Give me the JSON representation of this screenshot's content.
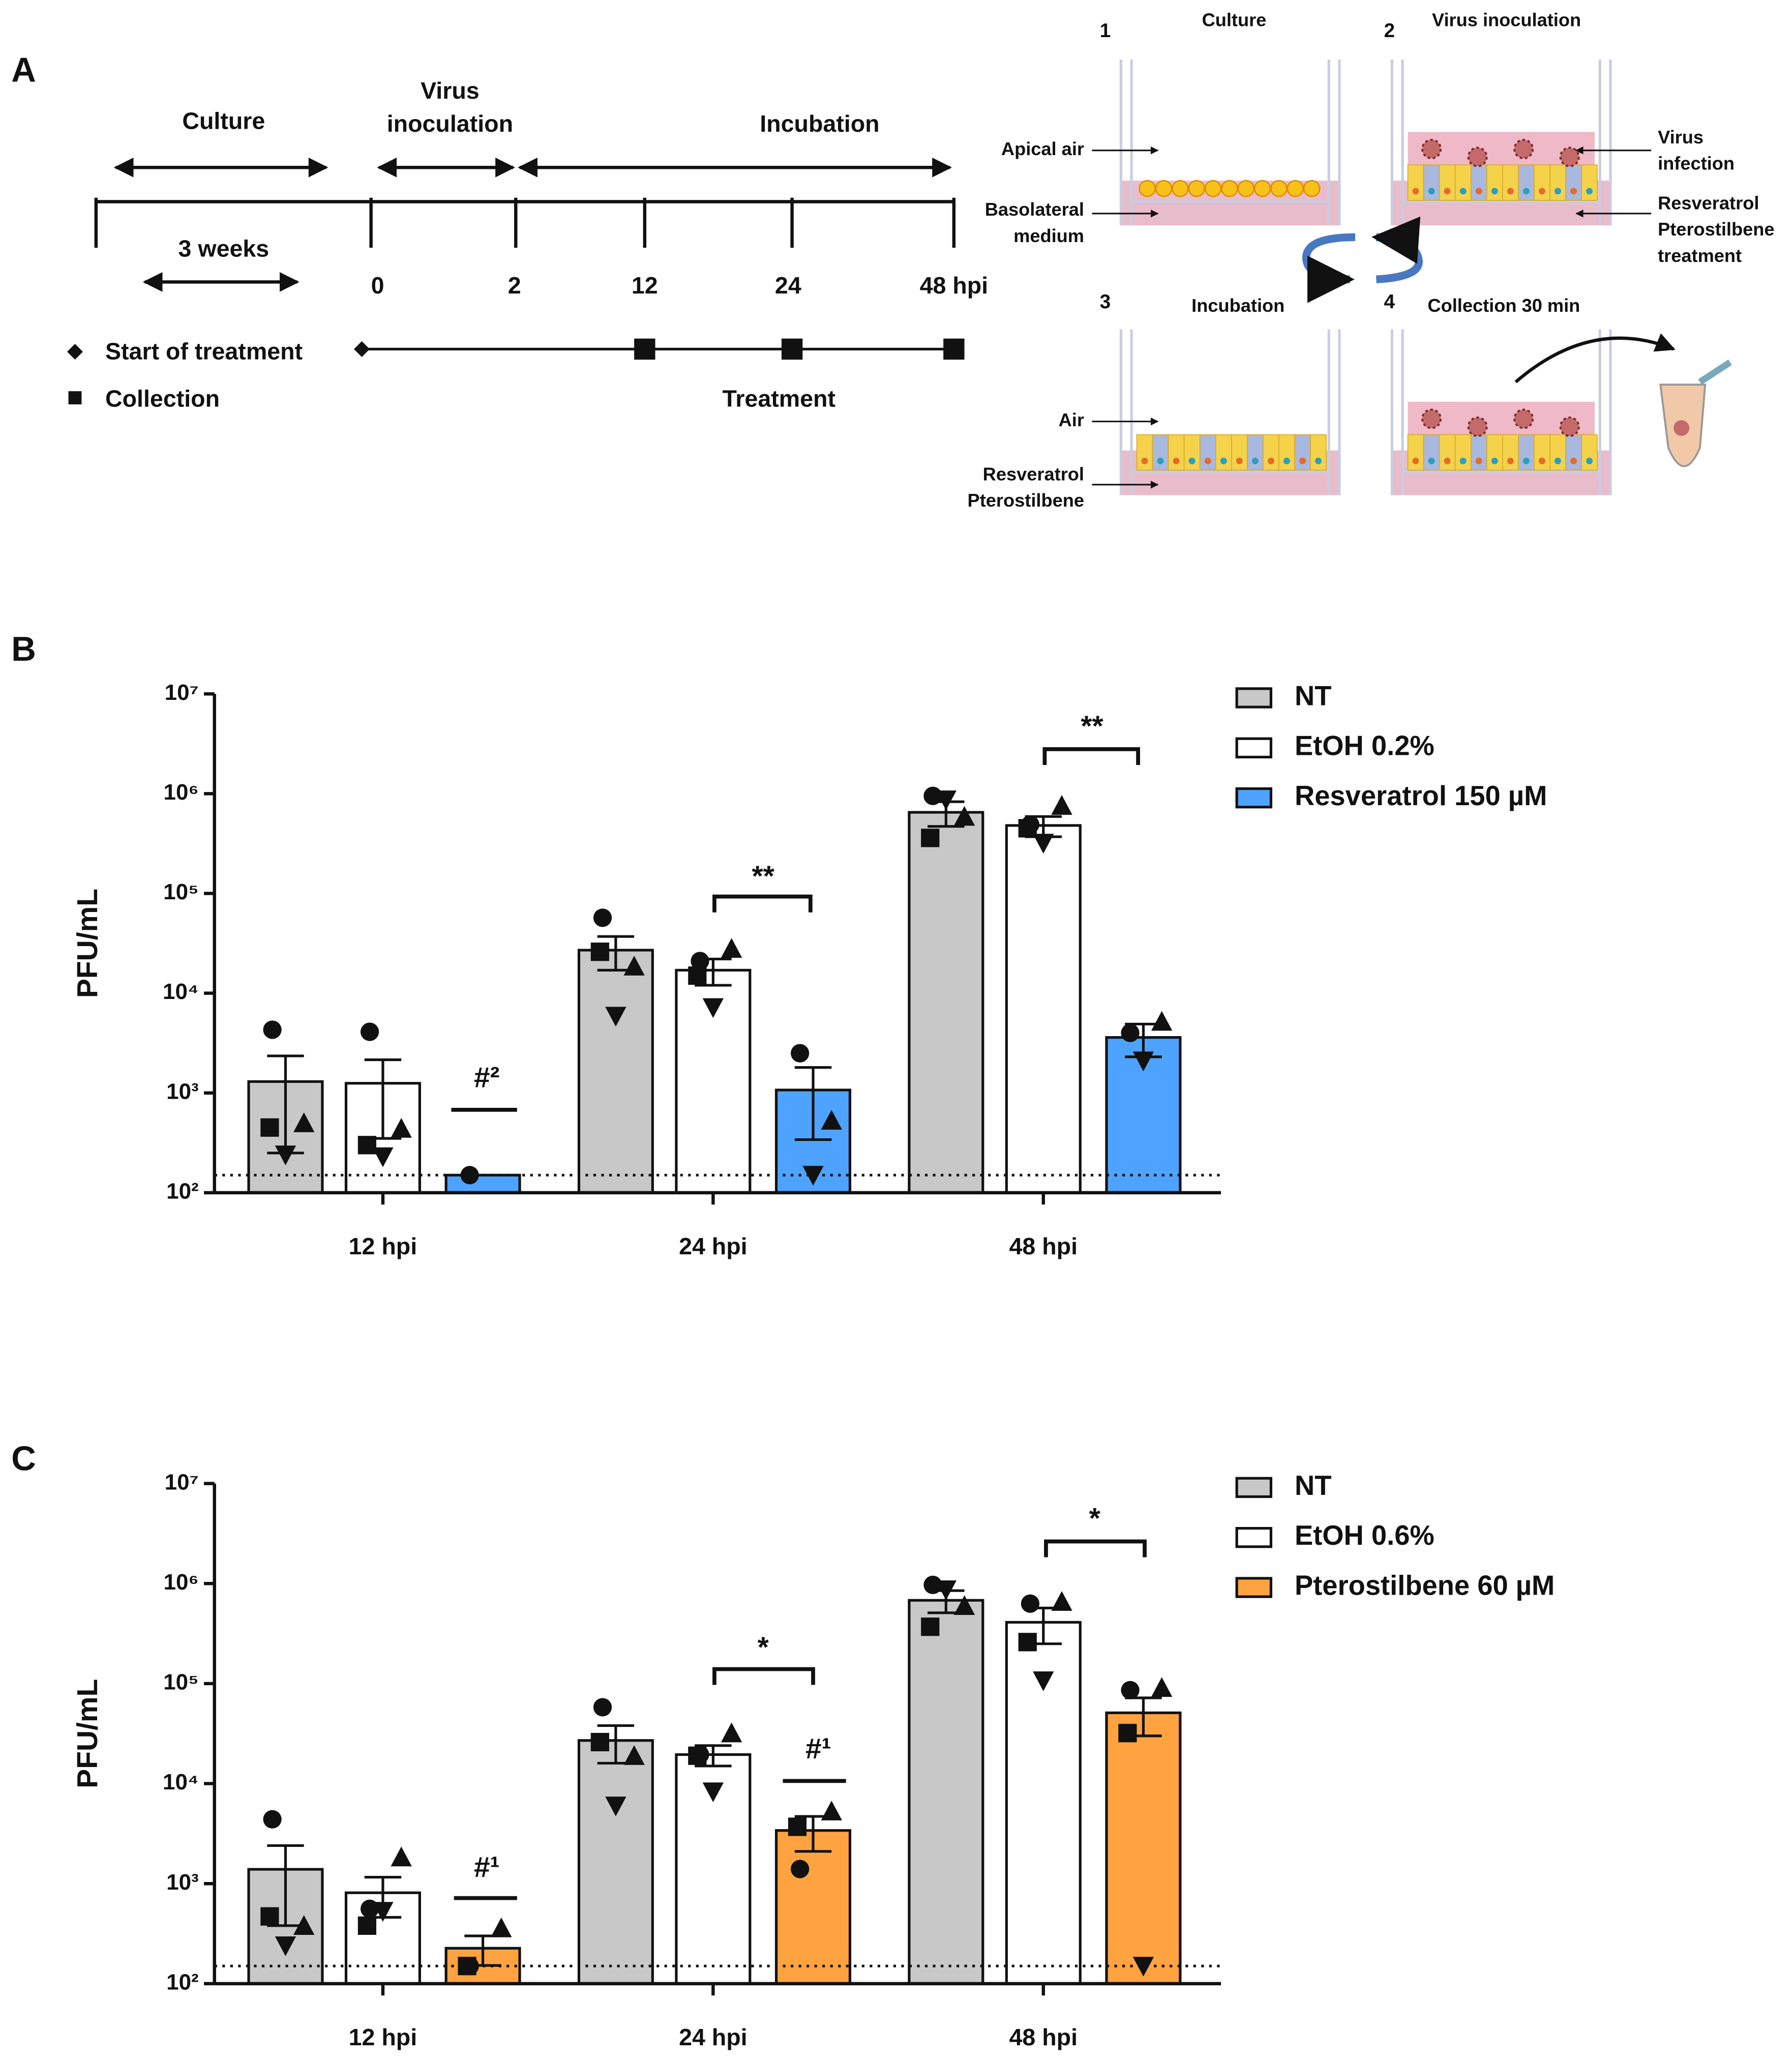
{
  "panel_a": {
    "label": "A",
    "timeline": {
      "phases": [
        [
          "Culture"
        ],
        [
          "Virus",
          "inoculation"
        ],
        [
          "Incubation"
        ]
      ],
      "duration": "3 weeks",
      "ticks": [
        "0",
        "2",
        "12",
        "24",
        "48 hpi"
      ],
      "legend": [
        "Start of treatment",
        "Collection"
      ],
      "treatment": "Treatment"
    },
    "schematic": {
      "steps": [
        {
          "number": "1",
          "title": "Culture"
        },
        {
          "number": "2",
          "title": "Virus inoculation"
        },
        {
          "number": "3",
          "title": "Incubation"
        },
        {
          "number": "4",
          "title": "Collection 30 min"
        }
      ],
      "labels": [
        [
          "Apical air"
        ],
        [
          "Basolateral",
          "medium"
        ],
        [
          "Virus",
          "infection"
        ],
        [
          "Resveratrol",
          "Pterostilbene",
          "treatment"
        ],
        [
          "Air"
        ],
        [
          "Resveratrol",
          "Pterostilbene"
        ]
      ]
    }
  },
  "chart_data": [
    {
      "type": "bar",
      "panel_label": "B",
      "ylabel": "PFU/mL",
      "yscale": "log",
      "ylim": [
        100,
        10000000
      ],
      "yticks": [
        {
          "value": 100,
          "label": "10²"
        },
        {
          "value": 1000,
          "label": "10³"
        },
        {
          "value": 10000,
          "label": "10⁴"
        },
        {
          "value": 100000,
          "label": "10⁵"
        },
        {
          "value": 1000000,
          "label": "10⁶"
        },
        {
          "value": 10000000,
          "label": "10⁷"
        }
      ],
      "categories": [
        "12 hpi",
        "24 hpi",
        "48 hpi"
      ],
      "point_markers": [
        "circle",
        "square",
        "triangle",
        "triangle-down"
      ],
      "detection_limit": 150,
      "series": [
        {
          "name": "NT",
          "color": "#c8c8c8",
          "values": [
            1300,
            27000,
            650000
          ],
          "errors": [
            1050,
            10000,
            180000
          ],
          "points": [
            [
              4300,
              450,
              500,
              240
            ],
            [
              57000,
              26000,
              18600,
              5900
            ],
            [
              950000,
              360000,
              590000,
              870000
            ]
          ]
        },
        {
          "name": "EtOH 0.2%",
          "color": "#ffffff",
          "values": [
            1250,
            17000,
            480000
          ],
          "errors": [
            900,
            5000,
            110000
          ],
          "points": [
            [
              4100,
              300,
              440,
              230
            ],
            [
              21000,
              15000,
              28000,
              7200
            ],
            [
              490000,
              450000,
              760000,
              320000
            ]
          ]
        },
        {
          "name": "Resveratrol 150 µM",
          "color": "#4da3ff",
          "values": [
            150,
            1070,
            3600
          ],
          "errors": [
            null,
            730,
            1300
          ],
          "points": [
            [
              150,
              null,
              null,
              null
            ],
            [
              2500,
              null,
              530,
              150
            ],
            [
              4000,
              null,
              5200,
              2100
            ]
          ]
        }
      ],
      "annotations": [
        "#²",
        "**",
        "**"
      ]
    },
    {
      "type": "bar",
      "panel_label": "C",
      "ylabel": "PFU/mL",
      "yscale": "log",
      "ylim": [
        100,
        10000000
      ],
      "yticks": [
        {
          "value": 100,
          "label": "10²"
        },
        {
          "value": 1000,
          "label": "10³"
        },
        {
          "value": 10000,
          "label": "10⁴"
        },
        {
          "value": 100000,
          "label": "10⁵"
        },
        {
          "value": 1000000,
          "label": "10⁶"
        },
        {
          "value": 10000000,
          "label": "10⁷"
        }
      ],
      "categories": [
        "12 hpi",
        "24 hpi",
        "48 hpi"
      ],
      "point_markers": [
        "circle",
        "square",
        "triangle",
        "triangle-down"
      ],
      "detection_limit": 150,
      "series": [
        {
          "name": "NT",
          "color": "#c8c8c8",
          "values": [
            1390,
            27000,
            680000
          ],
          "errors": [
            1010,
            11000,
            170000
          ],
          "points": [
            [
              4400,
              470,
              380,
              240
            ],
            [
              58000,
              26000,
              19000,
              6000
            ],
            [
              970000,
              370000,
              600000,
              870000
            ]
          ]
        },
        {
          "name": "EtOH 0.6%",
          "color": "#ffffff",
          "values": [
            810,
            19500,
            410000
          ],
          "errors": [
            350,
            4500,
            160000
          ],
          "points": [
            [
              560,
              380,
              1840,
              530
            ],
            [
              19500,
              19000,
              32000,
              8300
            ],
            [
              630000,
              260000,
              660000,
              107000
            ]
          ]
        },
        {
          "name": "Pterostilbene 60 µM",
          "color": "#ffa340",
          "values": [
            226,
            3400,
            51000
          ],
          "errors": [
            74,
            1300,
            21000
          ],
          "points": [
            [
              150,
              150,
              360,
              null
            ],
            [
              1400,
              3700,
              5300,
              null
            ],
            [
              86000,
              32000,
              91000,
              150
            ]
          ]
        }
      ],
      "annotations": [
        "#¹",
        "*",
        "#¹",
        "*"
      ]
    }
  ]
}
